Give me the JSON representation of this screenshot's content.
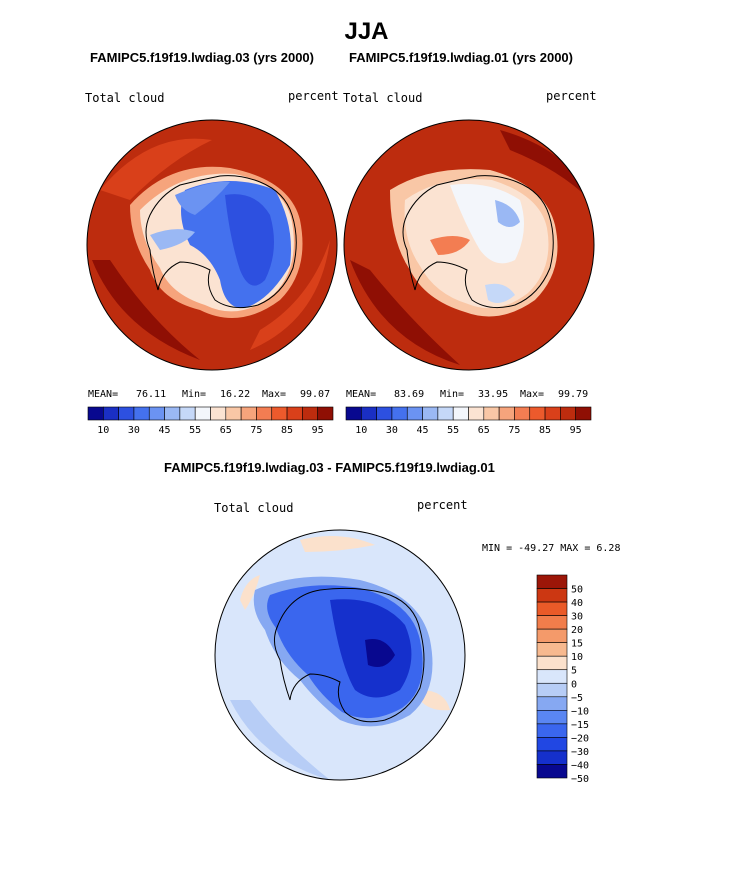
{
  "title": "JJA",
  "panel_left": {
    "case_title": "FAMIPC5.f19f19.lwdiag.03 (yrs 2000)",
    "variable": "Total cloud",
    "units": "percent",
    "stats": {
      "mean_label": "MEAN=",
      "mean": "76.11",
      "min_label": "Min=",
      "min": "16.22",
      "max_label": "Max=",
      "max": "99.07"
    }
  },
  "panel_right": {
    "case_title": "FAMIPC5.f19f19.lwdiag.01 (yrs 2000)",
    "variable": "Total cloud",
    "units": "percent",
    "stats": {
      "mean_label": "MEAN=",
      "mean": "83.69",
      "min_label": "Min=",
      "min": "33.95",
      "max_label": "Max=",
      "max": "99.79"
    }
  },
  "panel_diff": {
    "title": "FAMIPC5.f19f19.lwdiag.03 - FAMIPC5.f19f19.lwdiag.01",
    "variable": "Total cloud",
    "units": "percent",
    "minmax_text": "MIN = -49.27 MAX =    6.28"
  },
  "colors": {
    "abs_scale": [
      "#08088f",
      "#1a2fc4",
      "#2d50e0",
      "#4471ee",
      "#6b93f2",
      "#9ab8f4",
      "#c5d8f8",
      "#f3f6fb",
      "#fbe3d2",
      "#f9c7a6",
      "#f6a47c",
      "#f37d52",
      "#ec5a2c",
      "#d9401a",
      "#bd2c0e",
      "#8f0f04"
    ],
    "diff_scale": [
      "#08088f",
      "#1530cc",
      "#2147e3",
      "#3a66ee",
      "#5a86f2",
      "#86a8f2",
      "#b7cdf6",
      "#d9e6fb",
      "#fbe1cc",
      "#f7b98f",
      "#f49a6a",
      "#f17d4b",
      "#ea5a28",
      "#cc3712",
      "#9c1608"
    ]
  },
  "chart_data": [
    {
      "type": "heatmap",
      "title": "FAMIPC5.f19f19.lwdiag.03 (yrs 2000)",
      "projection": "south polar stereographic",
      "variable": "Total cloud",
      "units": "percent",
      "mean": 76.11,
      "min": 16.22,
      "max": 99.07,
      "colorbar_ticks": [
        "10",
        "30",
        "45",
        "55",
        "65",
        "75",
        "85",
        "95"
      ],
      "contour_levels": [
        10,
        20,
        25,
        30,
        35,
        40,
        45,
        50,
        55,
        60,
        65,
        70,
        75,
        80,
        85,
        90,
        95
      ]
    },
    {
      "type": "heatmap",
      "title": "FAMIPC5.f19f19.lwdiag.01 (yrs 2000)",
      "projection": "south polar stereographic",
      "variable": "Total cloud",
      "units": "percent",
      "mean": 83.69,
      "min": 33.95,
      "max": 99.79,
      "colorbar_ticks": [
        "10",
        "30",
        "45",
        "55",
        "65",
        "75",
        "85",
        "95"
      ],
      "contour_levels": [
        10,
        20,
        25,
        30,
        35,
        40,
        45,
        50,
        55,
        60,
        65,
        70,
        75,
        80,
        85,
        90,
        95
      ]
    },
    {
      "type": "heatmap",
      "title": "FAMIPC5.f19f19.lwdiag.03 - FAMIPC5.f19f19.lwdiag.01",
      "projection": "south polar stereographic",
      "variable": "Total cloud",
      "units": "percent",
      "min": -49.27,
      "max": 6.28,
      "colorbar_ticks": [
        "50",
        "40",
        "30",
        "20",
        "15",
        "10",
        "5",
        "0",
        "−5",
        "−10",
        "−15",
        "−20",
        "−30",
        "−40",
        "−50"
      ]
    }
  ]
}
